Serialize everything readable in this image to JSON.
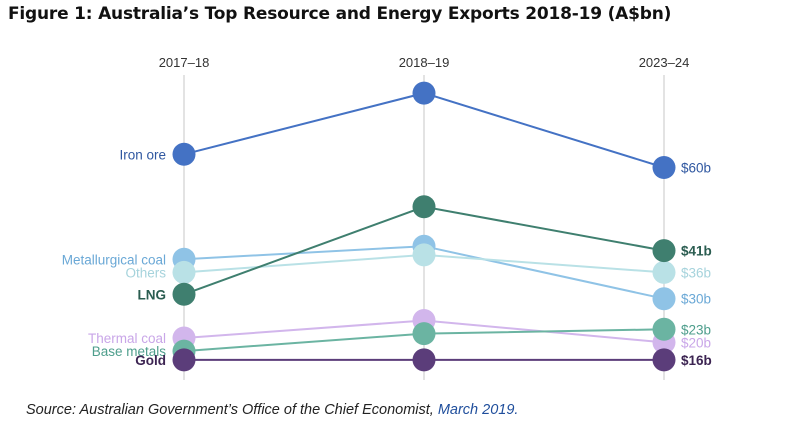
{
  "figure": {
    "title": "Figure 1: Australia’s Top Resource and Energy Exports 2018-19 (A$bn)",
    "source_prefix": "Source: Australian Government’s Office of the Chief Economist, ",
    "source_date": "March 2019."
  },
  "chart_data": {
    "type": "line",
    "title": "Figure 1: Australia’s Top Resource and Energy Exports 2018-19 (A$bn)",
    "xlabel": "",
    "ylabel": "",
    "x": [
      "2017–18",
      "2018–19",
      "2023–24"
    ],
    "ylim": [
      13,
      80
    ],
    "grid": true,
    "series": [
      {
        "name": "Iron ore",
        "values": [
          63,
          77,
          60
        ],
        "end_label": "$60b",
        "color": "#4472c4",
        "label_color": "#2f57a0"
      },
      {
        "name": "Metallurgical coal",
        "values": [
          39,
          42,
          30
        ],
        "end_label": "$30b",
        "color": "#8fc3e6",
        "label_color": "#6aa8d6"
      },
      {
        "name": "Others",
        "values": [
          36,
          40,
          36
        ],
        "end_label": "$36b",
        "color": "#b9e1e6",
        "label_color": "#a6d3dc"
      },
      {
        "name": "LNG",
        "values": [
          31,
          51,
          41
        ],
        "end_label": "$41b",
        "color": "#3f7f6f",
        "label_color": "#2a5c50"
      },
      {
        "name": "Thermal coal",
        "values": [
          21,
          25,
          20
        ],
        "end_label": "$20b",
        "color": "#d2b6ec",
        "label_color": "#c9a6e8"
      },
      {
        "name": "Base metals",
        "values": [
          18,
          22,
          23
        ],
        "end_label": "$23b",
        "color": "#6bb4a2",
        "label_color": "#4e9e8c"
      },
      {
        "name": "Gold",
        "values": [
          16,
          16,
          16
        ],
        "end_label": "$16b",
        "color": "#5b3d7a",
        "label_color": "#3c2452"
      }
    ]
  }
}
